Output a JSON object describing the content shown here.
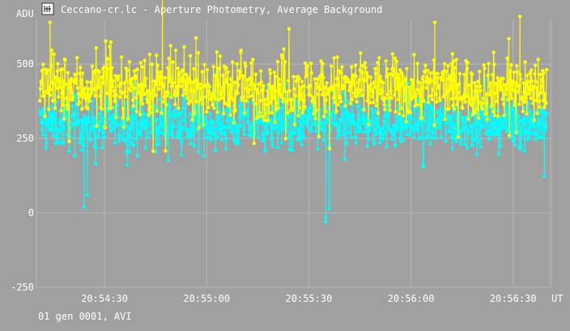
{
  "window": {
    "title": "Ceccano-cr.lc - Aperture Photometry, Average Background",
    "icon": "lightcurve-app-icon"
  },
  "footer": {
    "status": "01 gen 0001, AVI"
  },
  "colors": {
    "background": "#a0a0a0",
    "grid": "#b8b8b8",
    "text": "#ffffff",
    "series_yellow": "#ffff00",
    "series_cyan": "#00ffff"
  },
  "chart_data": {
    "type": "scatter",
    "title": "Ceccano-cr.lc - Aperture Photometry, Average Background",
    "xlabel": "UT",
    "ylabel": "ADU",
    "ylim": [
      -250,
      650
    ],
    "xlim": [
      "20:54:10",
      "20:56:41"
    ],
    "y_ticks": [
      -250,
      0,
      250,
      500
    ],
    "x_ticks": [
      "20:54:30",
      "20:55:00",
      "20:55:30",
      "20:56:00",
      "20:56:30"
    ],
    "grid": true,
    "markers": "dots joined by vertical lines",
    "series": [
      {
        "color": "#00ffff",
        "baseline": 300,
        "spread": 60,
        "notable_points": [
          {
            "t": "20:54:24",
            "v": 20
          },
          {
            "t": "20:54:25",
            "v": 60
          },
          {
            "t": "20:55:35",
            "v": -15
          },
          {
            "t": "20:55:35",
            "v": -30
          },
          {
            "t": "20:55:36",
            "v": 15
          }
        ]
      },
      {
        "color": "#ffff00",
        "baseline": 420,
        "spread": 75,
        "notable_points": [
          {
            "t": "20:54:14",
            "v": 640
          },
          {
            "t": "20:54:47",
            "v": 740
          },
          {
            "t": "20:55:10",
            "v": 540
          },
          {
            "t": "20:56:07",
            "v": 640
          },
          {
            "t": "20:56:32",
            "v": 660
          }
        ]
      }
    ]
  }
}
